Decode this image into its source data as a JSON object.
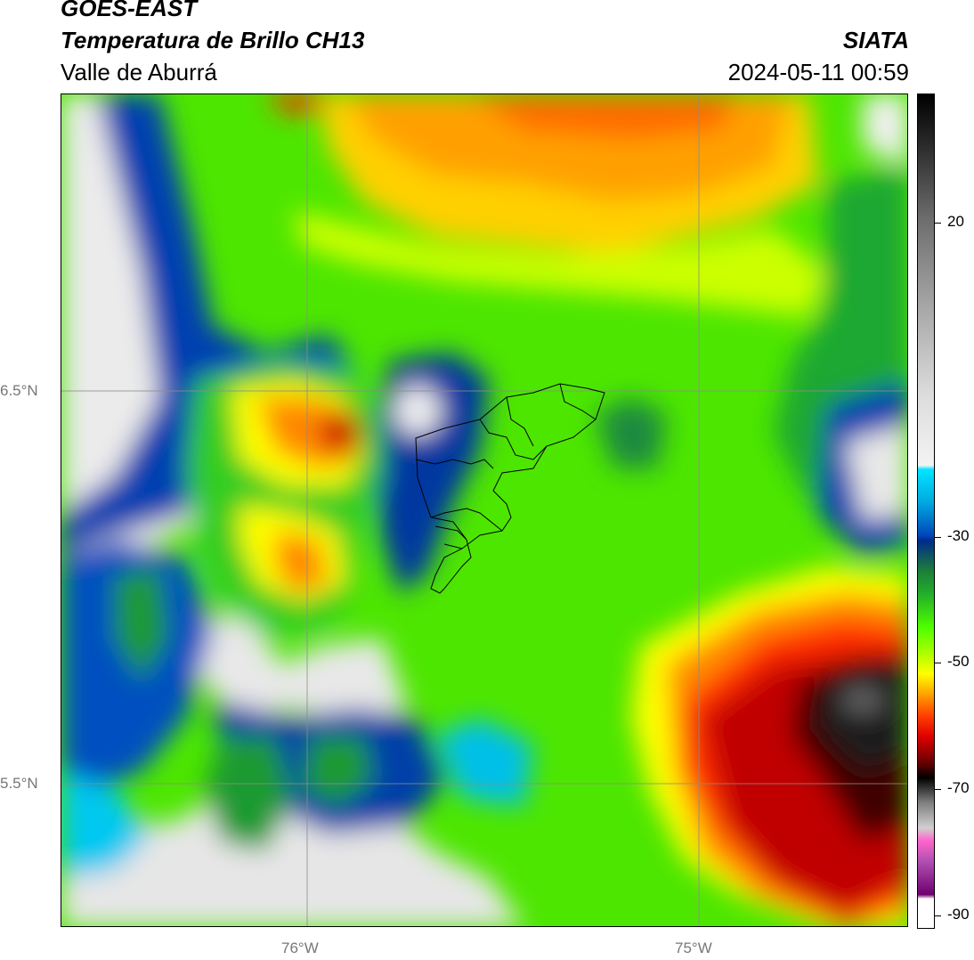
{
  "header": {
    "title_line1": "GOES-EAST",
    "title_line2": "Temperatura de Brillo CH13",
    "title_line3": "Valle de Aburrá",
    "org": "SIATA",
    "datetime": "2024-05-11 00:59"
  },
  "map": {
    "lat_labels": [
      "6.5°N",
      "5.5°N"
    ],
    "lon_labels": [
      "76°W",
      "75°W"
    ],
    "gridlines": true,
    "basemap": "brightness temperature field",
    "overlay": "municipal boundaries"
  },
  "colorbar": {
    "ticks": [
      "20",
      "-30",
      "-50",
      "-70",
      "-90"
    ],
    "colors": {
      "warm": "#f0f0f0",
      "cyan": "#00e5ff",
      "blue": "#0030a0",
      "green": "#23b02a",
      "lime": "#66ff00",
      "yellow": "#ffff00",
      "orange": "#ff8c00",
      "red": "#e00000",
      "black": "#000000",
      "magenta": "#9a2a9a"
    }
  }
}
